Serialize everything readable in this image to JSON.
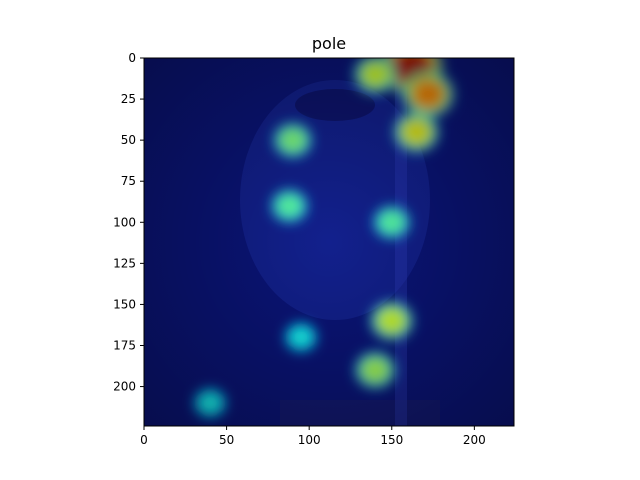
{
  "chart_data": {
    "type": "heatmap",
    "title": "pole",
    "xlabel": "",
    "ylabel": "",
    "xlim": [
      0,
      224
    ],
    "ylim": [
      224,
      0
    ],
    "x_ticks": [
      0,
      50,
      100,
      150,
      200
    ],
    "y_ticks": [
      0,
      25,
      50,
      75,
      100,
      125,
      150,
      175,
      200
    ],
    "colormap": "jet",
    "grid": false,
    "legend": "none",
    "hotspots": [
      {
        "x": 162,
        "y": 5,
        "intensity": 1.0
      },
      {
        "x": 172,
        "y": 22,
        "intensity": 0.75
      },
      {
        "x": 140,
        "y": 10,
        "intensity": 0.55
      },
      {
        "x": 165,
        "y": 45,
        "intensity": 0.6
      },
      {
        "x": 90,
        "y": 50,
        "intensity": 0.45
      },
      {
        "x": 88,
        "y": 90,
        "intensity": 0.4
      },
      {
        "x": 150,
        "y": 100,
        "intensity": 0.4
      },
      {
        "x": 150,
        "y": 160,
        "intensity": 0.55
      },
      {
        "x": 140,
        "y": 190,
        "intensity": 0.5
      },
      {
        "x": 95,
        "y": 170,
        "intensity": 0.3
      },
      {
        "x": 40,
        "y": 210,
        "intensity": 0.3
      }
    ]
  }
}
